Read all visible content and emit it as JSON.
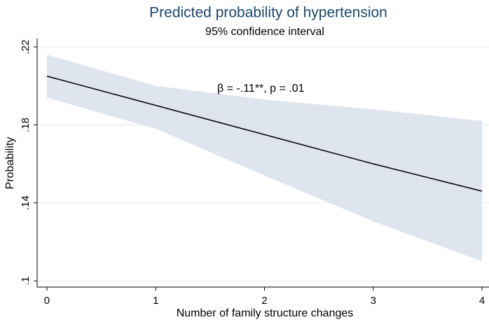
{
  "chart_data": {
    "type": "line",
    "title": "Predicted probability of hypertension",
    "subtitle": "95% confidence interval",
    "x_label": "Number of family structure changes",
    "y_label": "Probability",
    "annotation": "β = -.11**, p = .01",
    "x": [
      0,
      1,
      2,
      3,
      4
    ],
    "values": [
      0.205,
      0.19,
      0.175,
      0.16,
      0.146
    ],
    "ci_lower": [
      0.194,
      0.178,
      0.154,
      0.1305,
      0.11
    ],
    "ci_upper": [
      0.216,
      0.2,
      0.193,
      0.188,
      0.182
    ],
    "color": "#000000",
    "band_color": "#dfe5ee",
    "xlim": [
      -0.09,
      4.064
    ],
    "ylim": [
      0.0968,
      0.2243
    ],
    "xticks": [
      0,
      1,
      2,
      3,
      4
    ],
    "yticks": [
      {
        "value": 0.1,
        "label": ".1"
      },
      {
        "value": 0.14,
        "label": ".14"
      },
      {
        "value": 0.18,
        "label": ".18"
      },
      {
        "value": 0.22,
        "label": ".22"
      }
    ],
    "grid": true
  }
}
